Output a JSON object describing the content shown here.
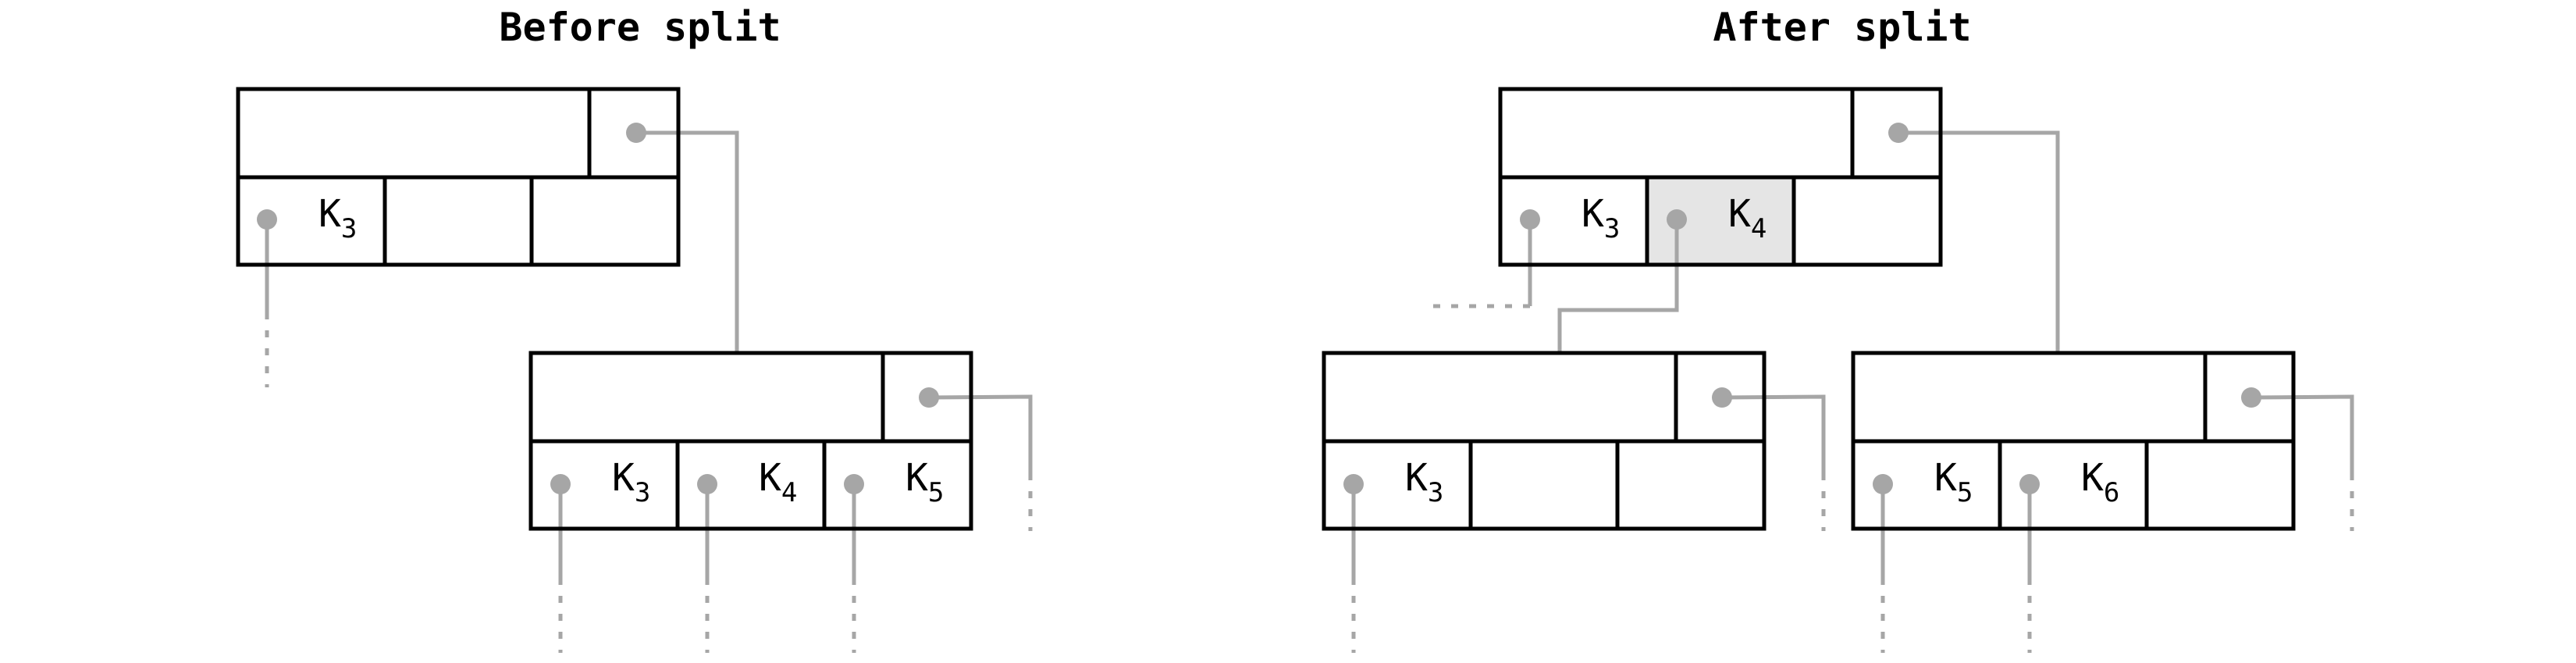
{
  "titles": {
    "before": "Before split",
    "after": "After split"
  },
  "keys": {
    "before_top_k3": {
      "letter": "K",
      "index": "3"
    },
    "before_child_k3": {
      "letter": "K",
      "index": "3"
    },
    "before_child_k4": {
      "letter": "K",
      "index": "4"
    },
    "before_child_k5": {
      "letter": "K",
      "index": "5"
    },
    "after_top_k3": {
      "letter": "K",
      "index": "3"
    },
    "after_top_k4": {
      "letter": "K",
      "index": "4"
    },
    "after_left_k3": {
      "letter": "K",
      "index": "3"
    },
    "after_right_k5": {
      "letter": "K",
      "index": "5"
    },
    "after_right_k6": {
      "letter": "K",
      "index": "6"
    }
  },
  "colors": {
    "node_border": "#000000",
    "pointer": "#a6a6a6",
    "promoted_key_fill": "#e5e5e5"
  }
}
